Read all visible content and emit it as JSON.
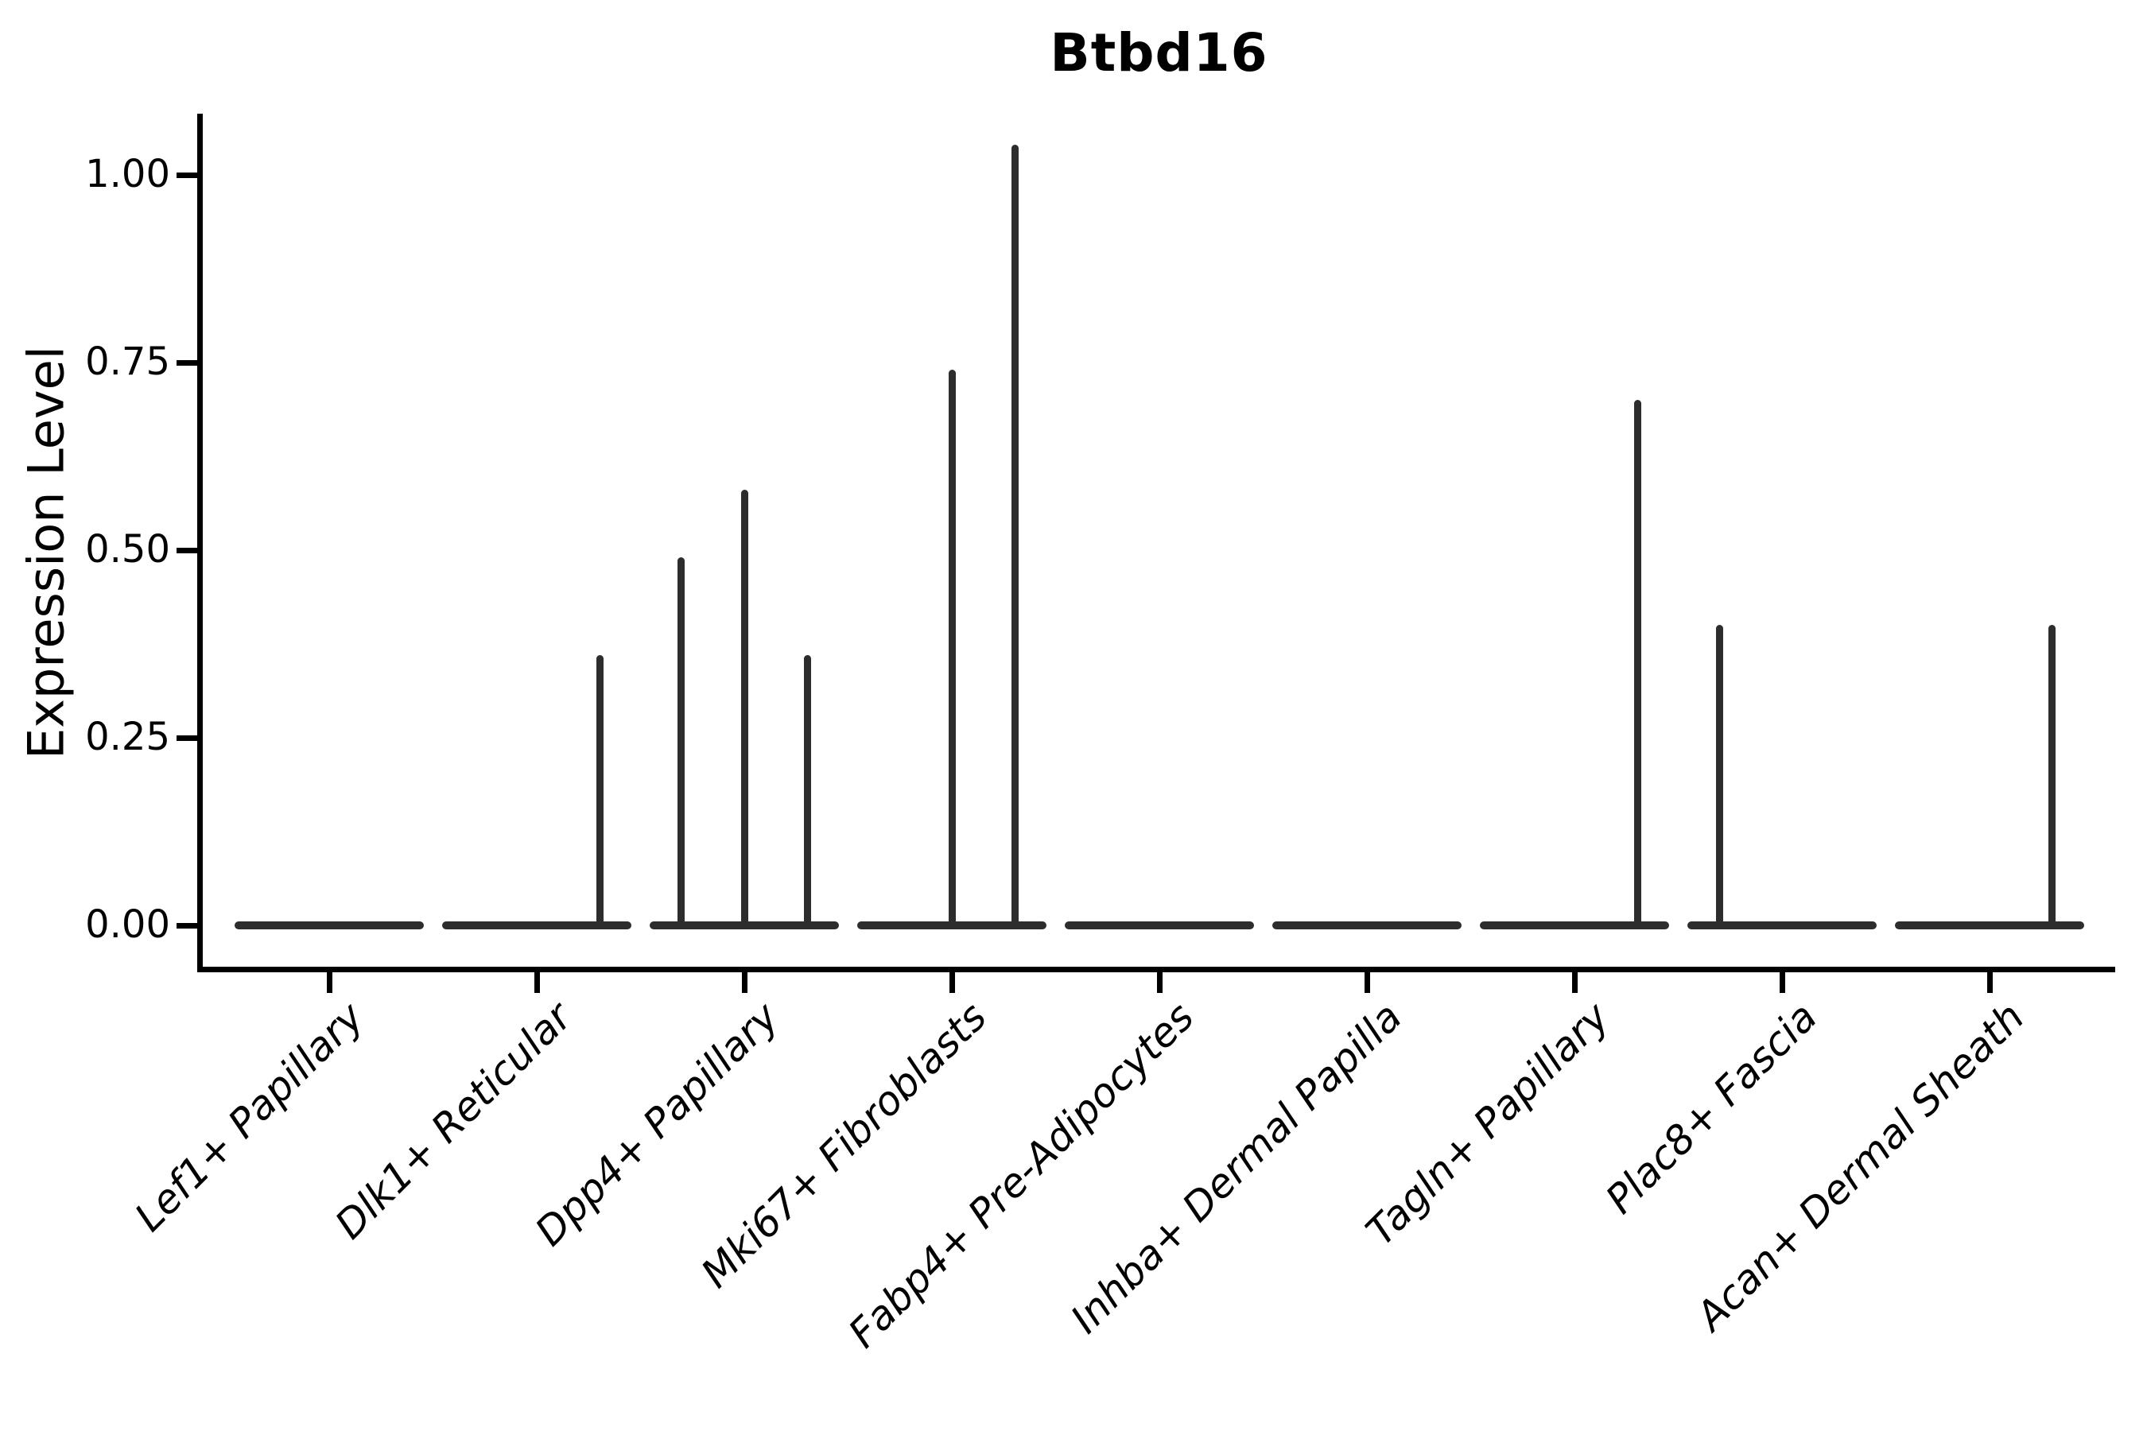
{
  "chart_data": {
    "type": "violin",
    "title": "Btbd16",
    "xlabel": "",
    "ylabel": "Expression Level",
    "legend": false,
    "grid": false,
    "background": "#ffffff",
    "colors": {
      "violin": "#2d2d2d",
      "axis": "#000000",
      "text": "#000000"
    },
    "y_axis": {
      "label": "Expression Level",
      "tick_labels": [
        "0.00",
        "0.25",
        "0.50",
        "0.75",
        "1.00"
      ],
      "tick_values": [
        0,
        0.25,
        0.5,
        0.75,
        1.0
      ],
      "shown_max": 1.08
    },
    "categories": [
      "Lef1+ Papillary",
      "Dlk1+ Reticular",
      "Dpp4+ Papillary",
      "Mki67+ Fibroblasts",
      "Fabp4+ Pre-Adipocytes",
      "Inhba+ Dermal Papilla",
      "Tagln+ Papillary",
      "Plac8+ Fascia",
      "Acan+ Dermal Sheath"
    ],
    "series": [
      {
        "category": "Lef1+ Papillary",
        "baseline": 0,
        "spikes": []
      },
      {
        "category": "Dlk1+ Reticular",
        "baseline": 0,
        "spikes": [
          {
            "pos": 0.67,
            "max": 0.36
          }
        ]
      },
      {
        "category": "Dpp4+ Papillary",
        "baseline": 0,
        "spikes": [
          {
            "pos": -0.67,
            "max": 0.49
          },
          {
            "pos": 0,
            "max": 0.58
          },
          {
            "pos": 0.67,
            "max": 0.36
          }
        ]
      },
      {
        "category": "Mki67+ Fibroblasts",
        "baseline": 0,
        "spikes": [
          {
            "pos": 0,
            "max": 0.74
          },
          {
            "pos": 0.67,
            "max": 1.04
          }
        ]
      },
      {
        "category": "Fabp4+ Pre-Adipocytes",
        "baseline": 0,
        "spikes": []
      },
      {
        "category": "Inhba+ Dermal Papilla",
        "baseline": 0,
        "spikes": []
      },
      {
        "category": "Tagln+ Papillary",
        "baseline": 0,
        "spikes": [
          {
            "pos": 0.67,
            "max": 0.7
          }
        ]
      },
      {
        "category": "Plac8+ Fascia",
        "baseline": 0,
        "spikes": [
          {
            "pos": -0.66,
            "max": 0.4
          }
        ]
      },
      {
        "category": "Acan+ Dermal Sheath",
        "baseline": 0,
        "spikes": [
          {
            "pos": 0.66,
            "max": 0.4
          }
        ]
      }
    ]
  }
}
